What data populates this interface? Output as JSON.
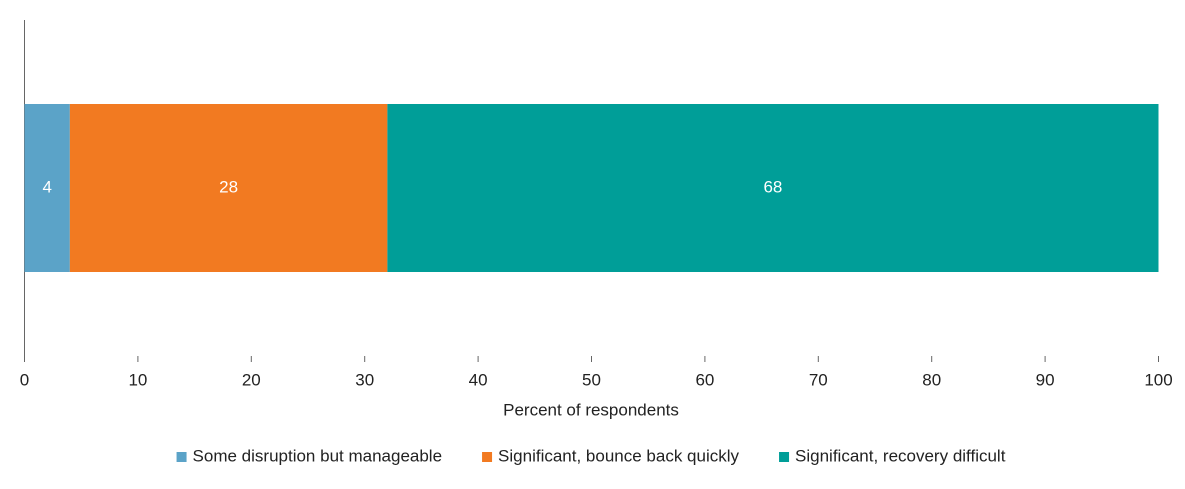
{
  "chart_data": {
    "type": "stacked-bar-horizontal",
    "categories": [
      null
    ],
    "series": [
      {
        "name": "Some disruption but manageable",
        "color": "#5ba3c8",
        "values": [
          4
        ]
      },
      {
        "name": "Significant, bounce back quickly",
        "color": "#f27a21",
        "values": [
          28
        ]
      },
      {
        "name": "Significant, recovery difficult",
        "color": "#009e98",
        "values": [
          68
        ]
      }
    ],
    "x_label": "Percent of respondents",
    "xlim": [
      0,
      100
    ],
    "xticks": [
      0,
      10,
      20,
      30,
      40,
      50,
      60,
      70,
      80,
      90,
      100
    ],
    "legend": "bottom"
  }
}
